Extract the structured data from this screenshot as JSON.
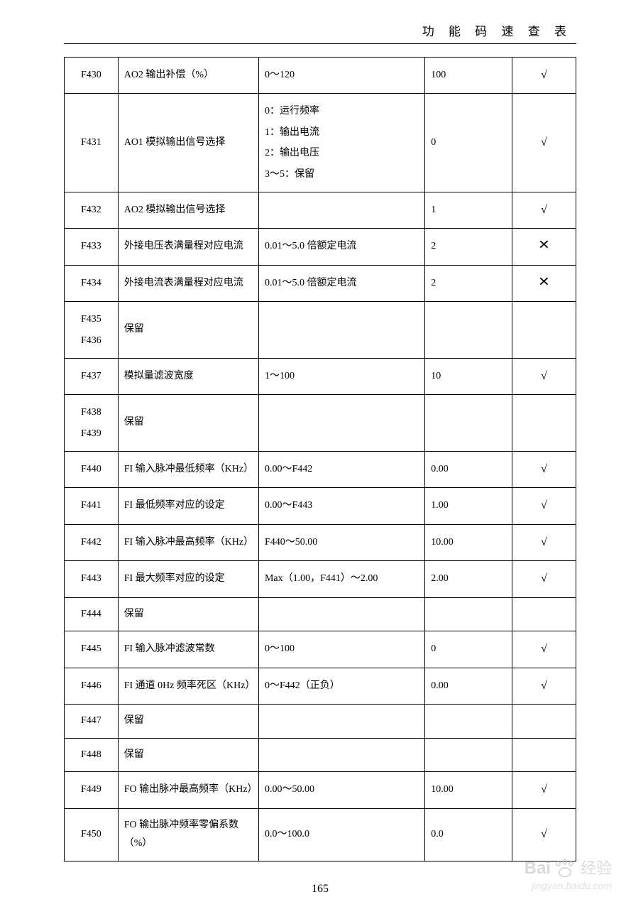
{
  "header": {
    "title": "功 能 码 速 查 表"
  },
  "table": {
    "rows": [
      {
        "code": "F430",
        "name": "AO2 输出补偿（%）",
        "range": "0～120",
        "default": "100",
        "mark": "√"
      },
      {
        "code": "F431",
        "name": "AO1 模拟输出信号选择",
        "range": "0：运行频率\n1：输出电流\n2：输出电压\n3～5：保留",
        "default": "0",
        "mark": "√",
        "multiline": true
      },
      {
        "code": "F432",
        "name": "AO2 模拟输出信号选择",
        "range": "",
        "default": "1",
        "mark": "√"
      },
      {
        "code": "F433",
        "name": "外接电压表满量程对应电流",
        "range": "0.01～5.0 倍额定电流",
        "default": "2",
        "mark": "×"
      },
      {
        "code": "F434",
        "name": "外接电流表满量程对应电流",
        "range": "0.01～5.0 倍额定电流",
        "default": "2",
        "mark": "×"
      },
      {
        "code": "F435\nF436",
        "name": "保留",
        "range": "",
        "default": "",
        "mark": "",
        "codeMultiline": true
      },
      {
        "code": "F437",
        "name": "模拟量滤波宽度",
        "range": "1～100",
        "default": "10",
        "mark": "√"
      },
      {
        "code": "F438\nF439",
        "name": "保留",
        "range": "",
        "default": "",
        "mark": "",
        "codeMultiline": true
      },
      {
        "code": "F440",
        "name": "FI 输入脉冲最低频率（KHz）",
        "range": "0.00～F442",
        "default": "0.00",
        "mark": "√"
      },
      {
        "code": "F441",
        "name": "FI 最低频率对应的设定",
        "range": "0.00～F443",
        "default": "1.00",
        "mark": "√"
      },
      {
        "code": "F442",
        "name": "FI 输入脉冲最高频率（KHz）",
        "range": "F440～50.00",
        "default": "10.00",
        "mark": "√"
      },
      {
        "code": "F443",
        "name": "FI 最大频率对应的设定",
        "range": "Max（1.00，F441）～2.00",
        "default": "2.00",
        "mark": "√"
      },
      {
        "code": "F444",
        "name": "保留",
        "range": "",
        "default": "",
        "mark": ""
      },
      {
        "code": "F445",
        "name": "FI 输入脉冲滤波常数",
        "range": "0～100",
        "default": "0",
        "mark": "√"
      },
      {
        "code": "F446",
        "name": "FI 通道 0Hz 频率死区（KHz）",
        "range": "0～F442（正负）",
        "default": "0.00",
        "mark": "√"
      },
      {
        "code": "F447",
        "name": "保留",
        "range": "",
        "default": "",
        "mark": ""
      },
      {
        "code": "F448",
        "name": "保留",
        "range": "",
        "default": "",
        "mark": ""
      },
      {
        "code": "F449",
        "name": "FO 输出脉冲最高频率（KHz）",
        "range": "0.00～50.00",
        "default": "10.00",
        "mark": "√"
      },
      {
        "code": "F450",
        "name": "FO 输出脉冲频率零偏系数（%）",
        "range": "0.0～100.0",
        "default": "0.0",
        "mark": "√"
      }
    ]
  },
  "pageNumber": "165",
  "watermark": {
    "brand1": "Bai",
    "brand2": "经验",
    "url": "jingyan.baidu.com"
  }
}
